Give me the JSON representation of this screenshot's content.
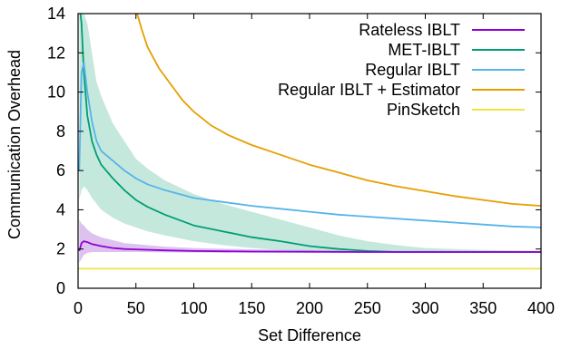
{
  "chart_data": {
    "type": "line",
    "title": "",
    "xlabel": "Set Difference",
    "ylabel": "Communication Overhead",
    "xlim": [
      0,
      400
    ],
    "ylim": [
      0,
      14
    ],
    "xticks": [
      0,
      50,
      100,
      150,
      200,
      250,
      300,
      350,
      400
    ],
    "yticks": [
      0,
      2,
      4,
      6,
      8,
      10,
      12,
      14
    ],
    "grid": false,
    "legend_position": "top-right",
    "series": [
      {
        "name": "Rateless IBLT",
        "color": "#9400d3",
        "band_color": "#c69ae6",
        "x": [
          1,
          3,
          5,
          8,
          12,
          16,
          20,
          30,
          40,
          50,
          75,
          100,
          150,
          200,
          250,
          300,
          350,
          400
        ],
        "values": [
          1.9,
          2.3,
          2.4,
          2.35,
          2.25,
          2.2,
          2.15,
          2.05,
          2.0,
          1.98,
          1.93,
          1.9,
          1.87,
          1.86,
          1.85,
          1.85,
          1.85,
          1.85
        ],
        "band_lower": [
          1.3,
          1.5,
          1.7,
          1.8,
          1.85,
          1.85,
          1.85,
          1.85,
          1.85,
          1.85,
          1.83,
          1.82,
          1.81,
          1.81,
          1.8,
          1.8,
          1.8,
          1.8
        ],
        "band_upper": [
          3.5,
          3.3,
          3.2,
          3.0,
          2.8,
          2.7,
          2.6,
          2.45,
          2.3,
          2.25,
          2.12,
          2.05,
          1.98,
          1.95,
          1.93,
          1.92,
          1.91,
          1.9
        ]
      },
      {
        "name": "MET-IBLT",
        "color": "#009e73",
        "band_color": "#9fd9c6",
        "x": [
          1,
          3,
          5,
          8,
          12,
          16,
          20,
          30,
          40,
          50,
          60,
          75,
          100,
          125,
          150,
          175,
          200,
          225,
          250,
          275,
          300,
          350,
          400
        ],
        "values": [
          14.5,
          13.5,
          11.0,
          8.8,
          7.5,
          6.8,
          6.3,
          5.6,
          5.0,
          4.5,
          4.15,
          3.75,
          3.2,
          2.9,
          2.6,
          2.4,
          2.15,
          2.0,
          1.9,
          1.85,
          1.85,
          1.85,
          1.85
        ],
        "band_lower": [
          4.5,
          5.0,
          5.2,
          5.0,
          4.6,
          4.3,
          4.0,
          3.6,
          3.3,
          3.1,
          2.9,
          2.7,
          2.4,
          2.2,
          2.05,
          1.95,
          1.85,
          1.8,
          1.8,
          1.8,
          1.8,
          1.8,
          1.8
        ],
        "band_upper": [
          14,
          14,
          14,
          13.5,
          12.0,
          10.5,
          9.8,
          8.4,
          7.5,
          6.6,
          6.1,
          5.5,
          4.8,
          4.3,
          3.9,
          3.5,
          3.1,
          2.7,
          2.4,
          2.2,
          2.05,
          1.95,
          1.9
        ]
      },
      {
        "name": "Regular IBLT",
        "color": "#56b4e9",
        "x": [
          1,
          3,
          5,
          8,
          12,
          16,
          20,
          30,
          40,
          50,
          60,
          75,
          100,
          125,
          150,
          175,
          200,
          225,
          250,
          275,
          300,
          325,
          350,
          375,
          400
        ],
        "values": [
          6.0,
          11.0,
          11.5,
          10.0,
          8.5,
          7.5,
          7.0,
          6.5,
          6.0,
          5.6,
          5.3,
          5.0,
          4.6,
          4.4,
          4.2,
          4.05,
          3.9,
          3.75,
          3.65,
          3.55,
          3.45,
          3.35,
          3.25,
          3.15,
          3.1
        ]
      },
      {
        "name": "Regular IBLT + Estimator",
        "color": "#e69f00",
        "x": [
          50,
          55,
          60,
          70,
          80,
          90,
          100,
          115,
          130,
          150,
          175,
          200,
          225,
          250,
          275,
          300,
          325,
          350,
          375,
          400
        ],
        "values": [
          14.2,
          13.2,
          12.3,
          11.2,
          10.4,
          9.6,
          9.0,
          8.3,
          7.8,
          7.3,
          6.8,
          6.3,
          5.9,
          5.5,
          5.2,
          4.95,
          4.7,
          4.5,
          4.3,
          4.2
        ]
      },
      {
        "name": "PinSketch",
        "color": "#f0e442",
        "x": [
          0,
          400
        ],
        "values": [
          1.0,
          1.0
        ]
      }
    ]
  }
}
